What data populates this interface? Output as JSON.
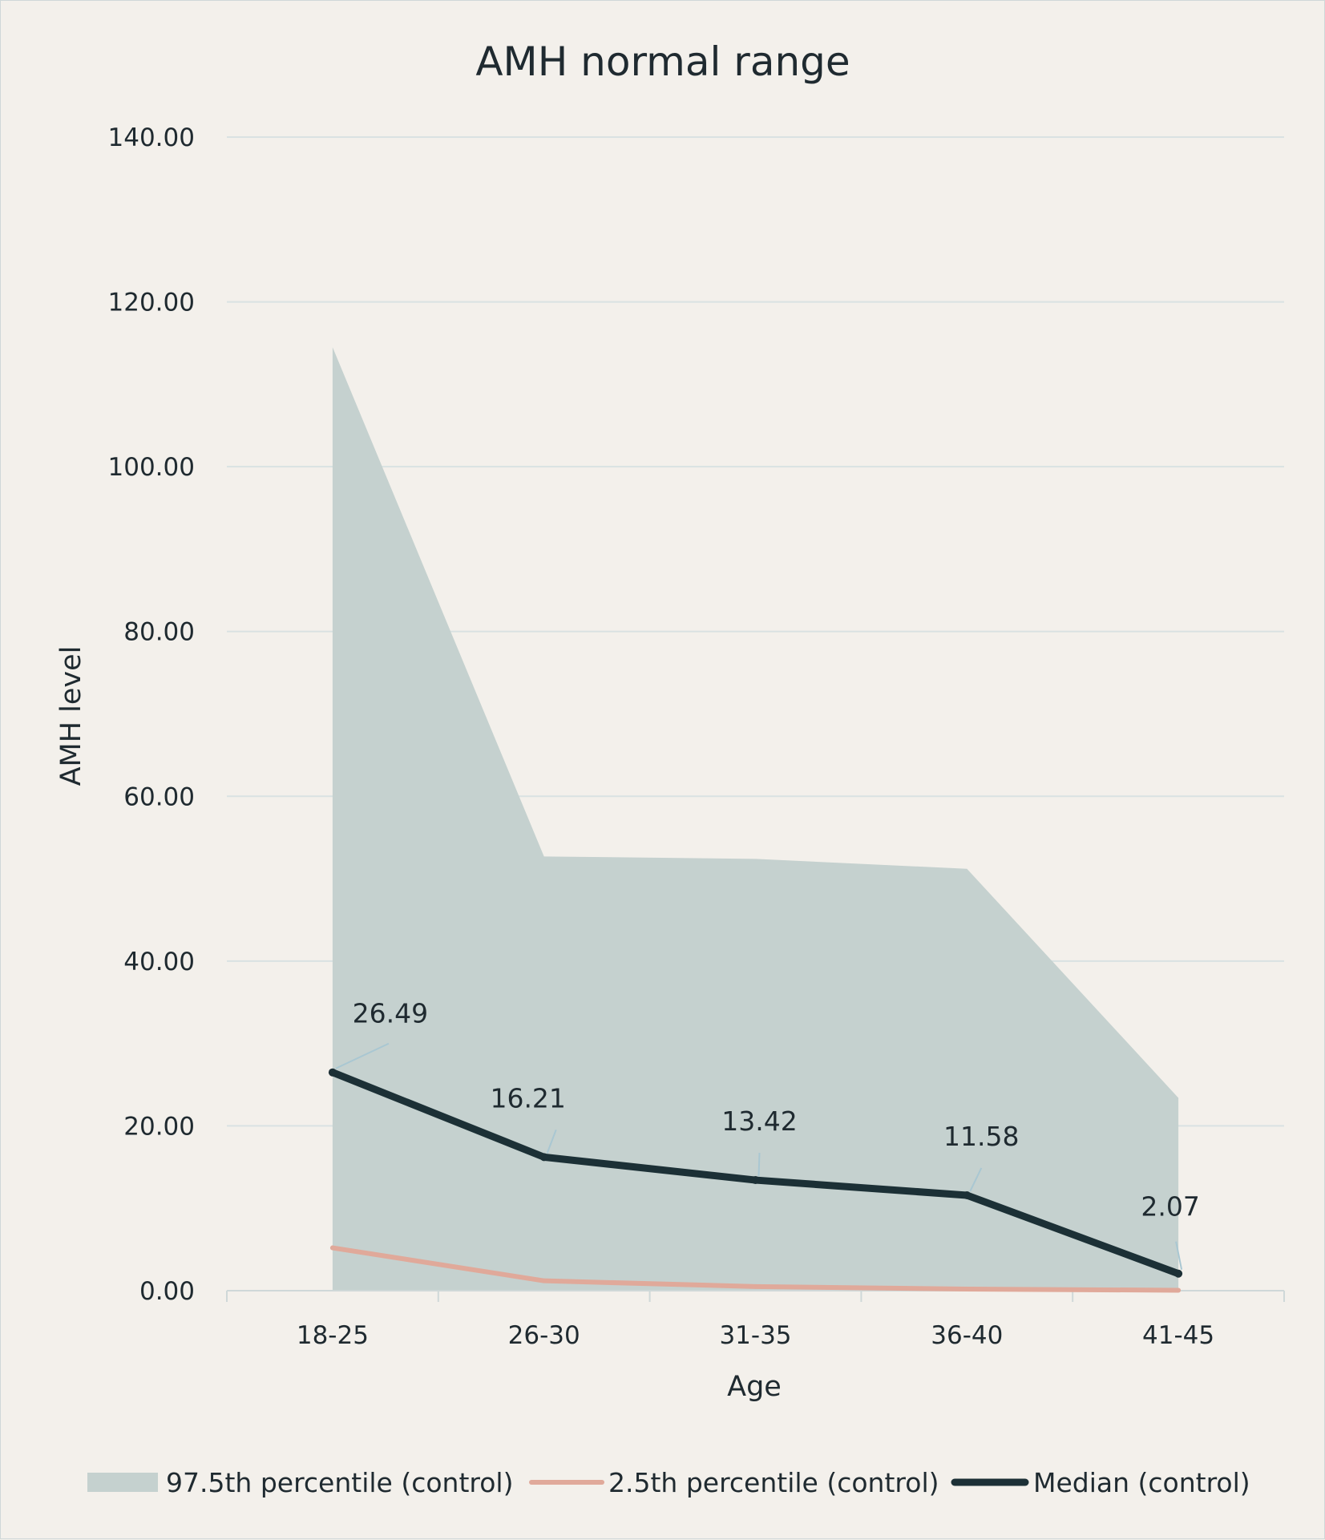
{
  "chart_data": {
    "type": "line",
    "title": "AMH normal range",
    "xlabel": "Age",
    "ylabel": "AMH level",
    "categories": [
      "18-25",
      "26-30",
      "31-35",
      "36-40",
      "41-45"
    ],
    "ylim": [
      0,
      140
    ],
    "yticks": [
      "0.00",
      "20.00",
      "40.00",
      "60.00",
      "80.00",
      "100.00",
      "120.00",
      "140.00"
    ],
    "grid": true,
    "legend_position": "bottom",
    "series": [
      {
        "name": "97.5th percentile (control)",
        "kind": "area",
        "color": "#c5d1cf",
        "values": [
          114.5,
          52.7,
          52.4,
          51.2,
          23.4
        ]
      },
      {
        "name": "2.5th percentile (control)",
        "kind": "line",
        "color": "#e0a99a",
        "values": [
          5.2,
          1.2,
          0.5,
          0.2,
          0.05
        ]
      },
      {
        "name": "Median (control)",
        "kind": "line",
        "color": "#1c3036",
        "values": [
          26.49,
          16.21,
          13.42,
          11.58,
          2.07
        ],
        "data_labels": [
          "26.49",
          "16.21",
          "13.42",
          "11.58",
          "2.07"
        ]
      }
    ]
  }
}
